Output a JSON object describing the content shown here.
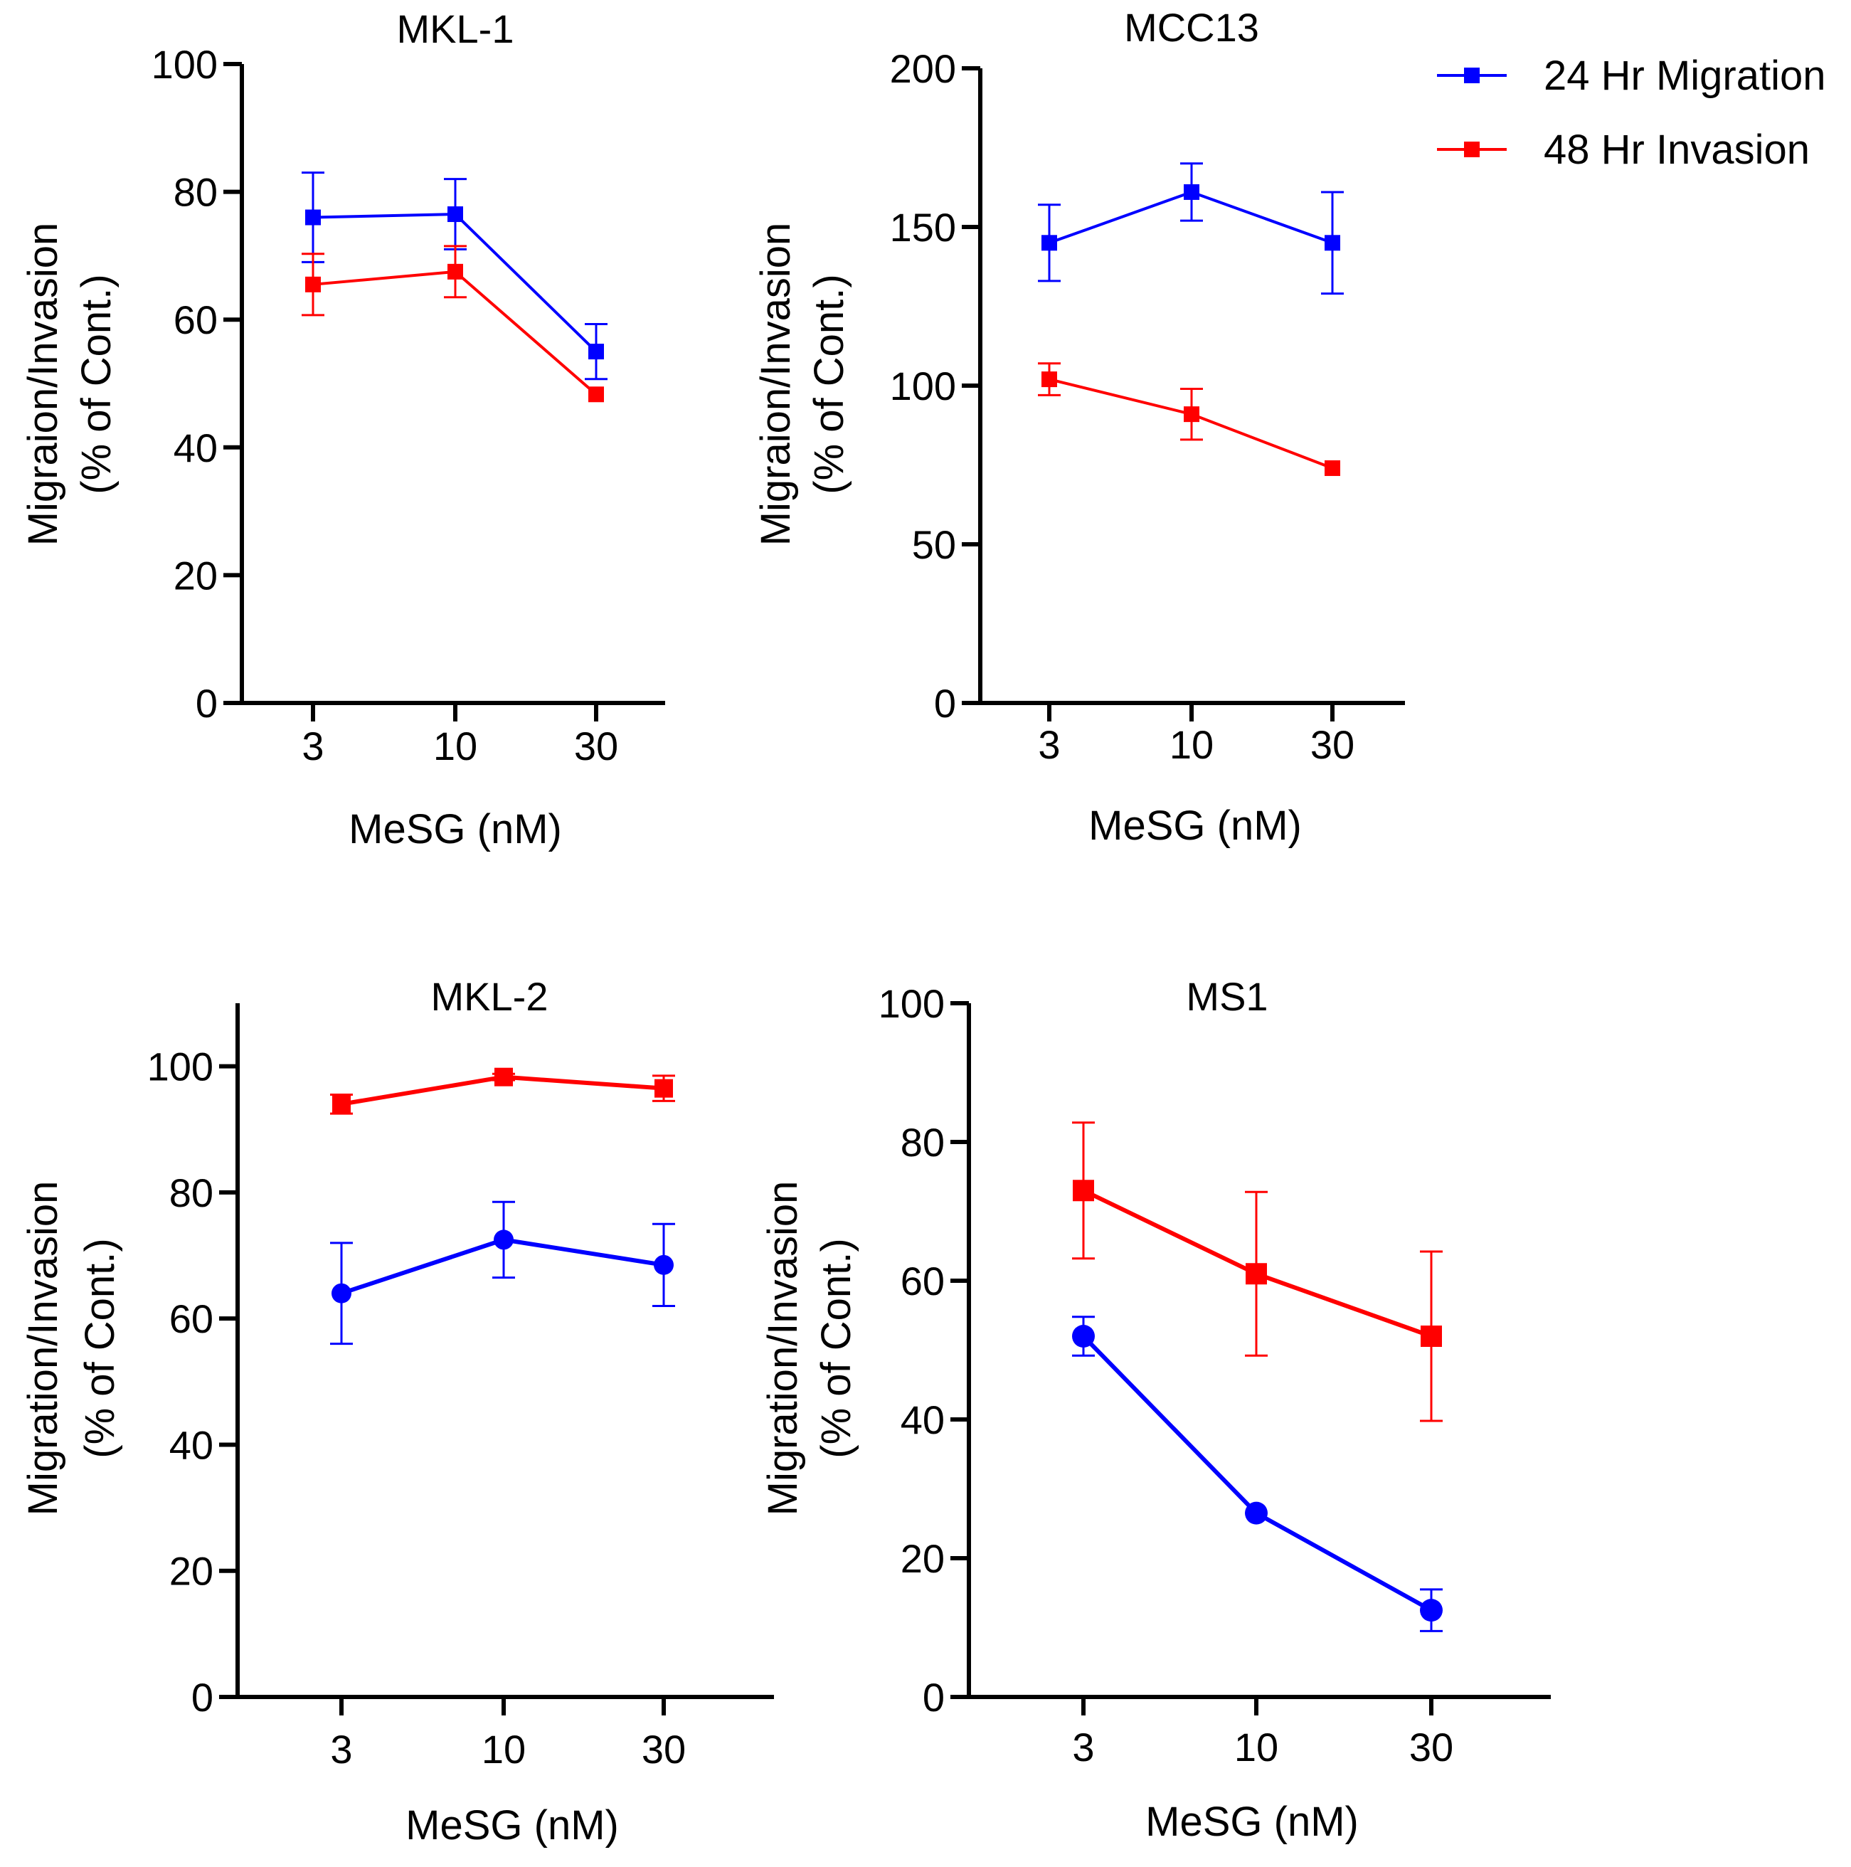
{
  "legend": {
    "placement": "top-right",
    "items": [
      {
        "label": "24 Hr Migration",
        "color": "#0000FF",
        "marker": "square"
      },
      {
        "label": "48 Hr Invasion",
        "color": "#FF0000",
        "marker": "square"
      }
    ]
  },
  "chart_data": [
    {
      "type": "line",
      "title": "MKL-1",
      "xlabel": "MeSG (nM)",
      "ylabel": [
        "Migraion/Invasion",
        "(% of Cont.)"
      ],
      "categories": [
        "3",
        "10",
        "30"
      ],
      "ylim": [
        0,
        100
      ],
      "yticks": [
        "0",
        "20",
        "40",
        "60",
        "80",
        "100"
      ],
      "series": [
        {
          "name": "24 Hr Migration",
          "color": "#0000FF",
          "marker": "square",
          "values": [
            76,
            76.5,
            55
          ],
          "errors": [
            7,
            5.5,
            4.3
          ]
        },
        {
          "name": "48 Hr Invasion",
          "color": "#FF0000",
          "marker": "square",
          "values": [
            65.5,
            67.5,
            48.3
          ],
          "errors": [
            4.8,
            4,
            0
          ]
        }
      ]
    },
    {
      "type": "line",
      "title": "MCC13",
      "xlabel": "MeSG (nM)",
      "ylabel": [
        "Migraion/Invasion",
        "(% of Cont.)"
      ],
      "categories": [
        "3",
        "10",
        "30"
      ],
      "ylim": [
        0,
        200
      ],
      "yticks": [
        "0",
        "50",
        "100",
        "150",
        "200"
      ],
      "series": [
        {
          "name": "24 Hr Migration",
          "color": "#0000FF",
          "marker": "square",
          "values": [
            145,
            161,
            145
          ],
          "errors": [
            12,
            9,
            16
          ]
        },
        {
          "name": "48 Hr Invasion",
          "color": "#FF0000",
          "marker": "square",
          "values": [
            102,
            91,
            74
          ],
          "errors": [
            5,
            8,
            0
          ]
        }
      ]
    },
    {
      "type": "line",
      "title": "MKL-2",
      "xlabel": "MeSG (nM)",
      "ylabel": [
        "Migration/Invasion",
        "(% of Cont.)"
      ],
      "categories": [
        "3",
        "10",
        "30"
      ],
      "ylim": [
        0,
        110
      ],
      "yticks": [
        "0",
        "20",
        "40",
        "60",
        "80",
        "100"
      ],
      "series": [
        {
          "name": "24 Hr Migration",
          "color": "#0000FF",
          "marker": "circle",
          "values": [
            64,
            72.5,
            68.5
          ],
          "errors": [
            8,
            6,
            6.5
          ]
        },
        {
          "name": "48 Hr Invasion",
          "color": "#FF0000",
          "marker": "square",
          "values": [
            94,
            98.3,
            96.5
          ],
          "errors": [
            1.5,
            0.5,
            2
          ]
        }
      ]
    },
    {
      "type": "line",
      "title": "MS1",
      "xlabel": "MeSG (nM)",
      "ylabel": [
        "Migration/Invasion",
        "(% of Cont.)"
      ],
      "categories": [
        "3",
        "10",
        "30"
      ],
      "ylim": [
        0,
        100
      ],
      "yticks": [
        "0",
        "20",
        "40",
        "60",
        "80",
        "100"
      ],
      "series": [
        {
          "name": "24 Hr Migration",
          "color": "#0000FF",
          "marker": "circle",
          "values": [
            52,
            26.5,
            12.5
          ],
          "errors": [
            2.8,
            0,
            3
          ]
        },
        {
          "name": "48 Hr Invasion",
          "color": "#FF0000",
          "marker": "square",
          "values": [
            73,
            61,
            52
          ],
          "errors": [
            9.8,
            11.8,
            12.2
          ]
        }
      ]
    }
  ]
}
